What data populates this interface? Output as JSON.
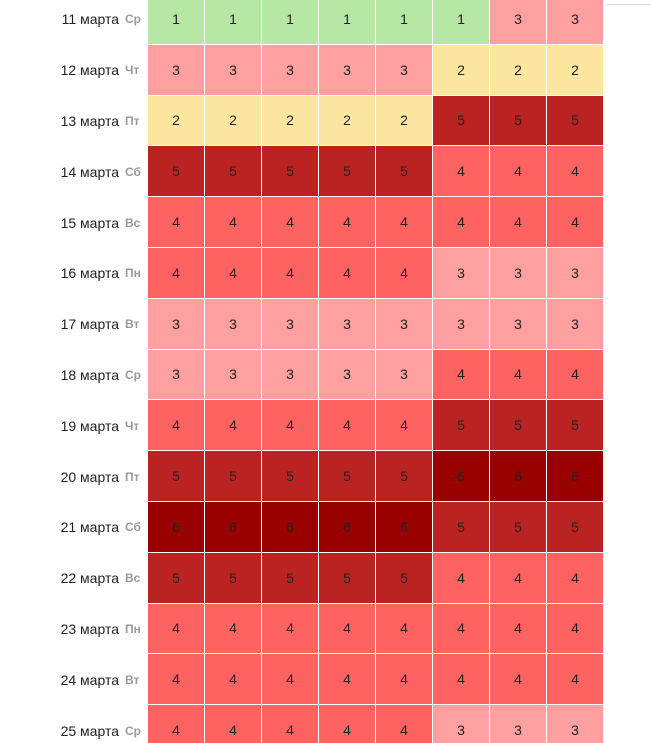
{
  "colors": {
    "1": "#b6e7a4",
    "2": "#fde7a0",
    "3": "#fda09f",
    "4": "#fe6362",
    "5": "#bb2222",
    "6": "#990000"
  },
  "rows": [
    {
      "date": "11 марта",
      "weekday": "Ср",
      "values": [
        1,
        1,
        1,
        1,
        1,
        1,
        3,
        3
      ]
    },
    {
      "date": "12 марта",
      "weekday": "Чт",
      "values": [
        3,
        3,
        3,
        3,
        3,
        2,
        2,
        2
      ]
    },
    {
      "date": "13 марта",
      "weekday": "Пт",
      "values": [
        2,
        2,
        2,
        2,
        2,
        5,
        5,
        5
      ]
    },
    {
      "date": "14 марта",
      "weekday": "Сб",
      "values": [
        5,
        5,
        5,
        5,
        5,
        4,
        4,
        4
      ]
    },
    {
      "date": "15 марта",
      "weekday": "Вс",
      "values": [
        4,
        4,
        4,
        4,
        4,
        4,
        4,
        4
      ]
    },
    {
      "date": "16 марта",
      "weekday": "Пн",
      "values": [
        4,
        4,
        4,
        4,
        4,
        3,
        3,
        3
      ]
    },
    {
      "date": "17 марта",
      "weekday": "Вт",
      "values": [
        3,
        3,
        3,
        3,
        3,
        3,
        3,
        3
      ]
    },
    {
      "date": "18 марта",
      "weekday": "Ср",
      "values": [
        3,
        3,
        3,
        3,
        3,
        4,
        4,
        4
      ]
    },
    {
      "date": "19 марта",
      "weekday": "Чт",
      "values": [
        4,
        4,
        4,
        4,
        4,
        5,
        5,
        5
      ]
    },
    {
      "date": "20 марта",
      "weekday": "Пт",
      "values": [
        5,
        5,
        5,
        5,
        5,
        6,
        6,
        6
      ]
    },
    {
      "date": "21 марта",
      "weekday": "Сб",
      "values": [
        6,
        6,
        6,
        6,
        6,
        5,
        5,
        5
      ]
    },
    {
      "date": "22 марта",
      "weekday": "Вс",
      "values": [
        5,
        5,
        5,
        5,
        5,
        4,
        4,
        4
      ]
    },
    {
      "date": "23 марта",
      "weekday": "Пн",
      "values": [
        4,
        4,
        4,
        4,
        4,
        4,
        4,
        4
      ]
    },
    {
      "date": "24 марта",
      "weekday": "Вт",
      "values": [
        4,
        4,
        4,
        4,
        4,
        4,
        4,
        4
      ]
    },
    {
      "date": "25 марта",
      "weekday": "Ср",
      "values": [
        4,
        4,
        4,
        4,
        4,
        3,
        3,
        3
      ]
    }
  ]
}
